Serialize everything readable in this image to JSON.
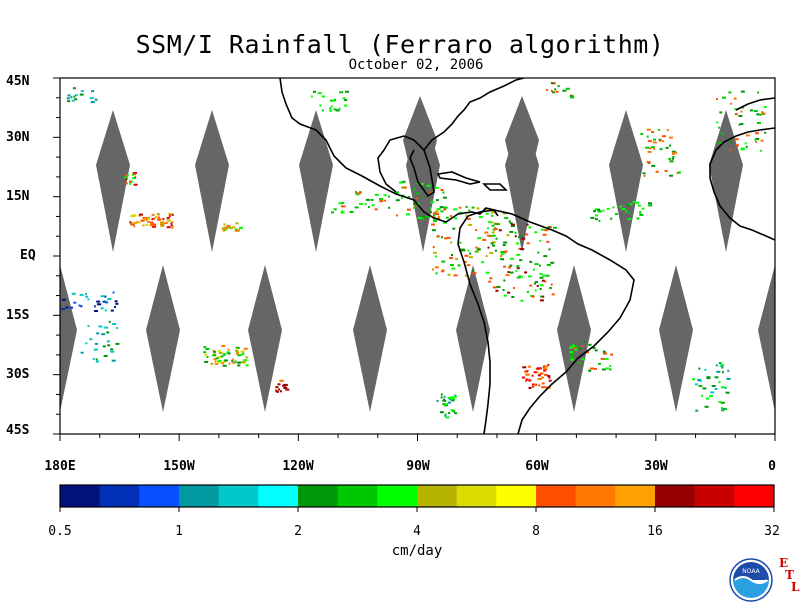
{
  "header": {
    "title": "SSM/I Rainfall (Ferraro algorithm)",
    "date": "October 02, 2006"
  },
  "map": {
    "lat_labels": [
      "45N",
      "30N",
      "15N",
      "EQ",
      "15S",
      "30S",
      "45S"
    ],
    "lon_labels": [
      "180E",
      "150W",
      "120W",
      "90W",
      "60W",
      "30W",
      "0"
    ],
    "land_fill": "#ffffff",
    "swath_gap_color": "#666666",
    "coast_color": "#000000"
  },
  "colorbar": {
    "units": "cm/day",
    "tick_labels": [
      "0.5",
      "1",
      "2",
      "4",
      "8",
      "16",
      "32"
    ],
    "colors": [
      "#00137a",
      "#002fb8",
      "#0a50ff",
      "#00999f",
      "#00c8c8",
      "#00ffff",
      "#00960a",
      "#00c800",
      "#00ff00",
      "#b4b400",
      "#dcdc00",
      "#ffff00",
      "#ff5000",
      "#ff7800",
      "#ffa000",
      "#960000",
      "#c80000",
      "#ff0000"
    ]
  },
  "logo": {
    "text": "NOAA",
    "lab_letters": [
      "E",
      "T",
      "L"
    ],
    "icon": "noaa-logo"
  }
}
